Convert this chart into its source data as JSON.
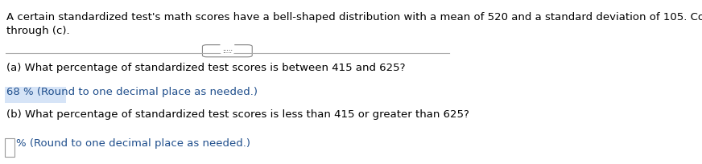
{
  "intro_text": "A certain standardized test's math scores have a bell-shaped distribution with a mean of 520 and a standard deviation of 105. Complete parts (a)\nthrough (c).",
  "dots": ".....",
  "question_a": "(a) What percentage of standardized test scores is between 415 and 625?",
  "answer_a": "68 % (Round to one decimal place as needed.)",
  "answer_a_highlighted": true,
  "question_b": "(b) What percentage of standardized test scores is less than 415 or greater than 625?",
  "answer_b_prefix": "% (Round to one decimal place as needed.)",
  "bg_color": "#ffffff",
  "text_color": "#000000",
  "answer_color": "#1f4e8c",
  "highlight_color": "#d6e4f7",
  "box_color": "#999999",
  "font_size": 9.5,
  "answer_font_size": 9.5
}
